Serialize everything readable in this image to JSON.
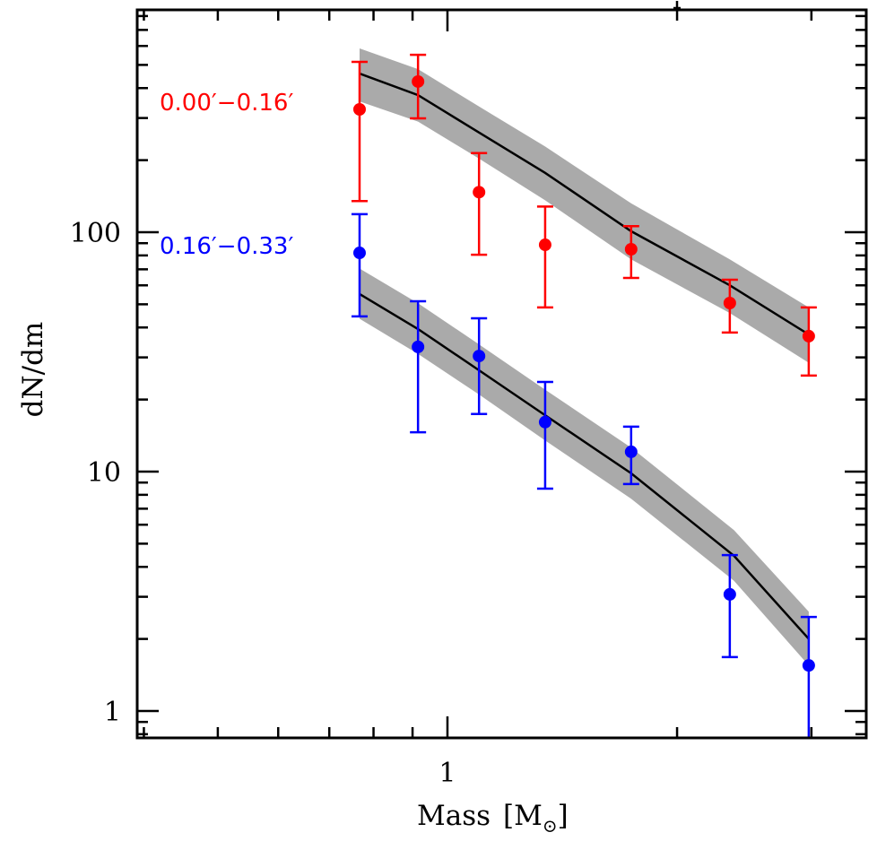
{
  "chart_data": {
    "type": "scatter",
    "title": "",
    "xlabel": "Mass [M☉]",
    "xlabel_main": "Mass",
    "xlabel_unit": "M",
    "xlabel_unit_sub": "⊙",
    "ylabel": "dN/dm",
    "xscale": "log",
    "yscale": "log",
    "xlim": [
      0.392,
      3.54
    ],
    "ylim": [
      0.772,
      849
    ],
    "x_major_ticks": [
      1
    ],
    "x_major_tick_labels": [
      "1"
    ],
    "x_minor_ticks": [
      0.4,
      0.5,
      0.6,
      0.7,
      0.8,
      0.9,
      2,
      3
    ],
    "y_major_ticks": [
      1,
      10,
      100
    ],
    "y_major_tick_labels": [
      "1",
      "10",
      "100"
    ],
    "y_minor_ticks": [
      0.8,
      0.9,
      2,
      3,
      4,
      5,
      6,
      7,
      8,
      9,
      20,
      30,
      40,
      50,
      60,
      70,
      80,
      90,
      200,
      300,
      400,
      500,
      600,
      700,
      800
    ],
    "grid": false,
    "legend": "inline-left",
    "series": [
      {
        "name": "0.00′−0.16′",
        "color": "#ff0000",
        "label_position": "top-left",
        "x": [
          0.767,
          0.915,
          1.1,
          1.343,
          1.741,
          2.345,
          2.976
        ],
        "y": [
          326,
          426,
          147,
          88.6,
          84.9,
          50.6,
          36.8
        ],
        "y_err_upper": [
          515,
          551,
          214,
          128,
          106,
          63.3,
          48.5
        ],
        "y_err_lower": [
          135,
          299,
          80.5,
          48.5,
          64.4,
          38.1,
          25.2
        ],
        "model": {
          "x": [
            0.767,
            0.915,
            1.1,
            1.343,
            1.741,
            2.345,
            2.976
          ],
          "y": [
            460,
            374,
            261,
            177,
            101,
            60,
            37.4
          ],
          "band_upper": [
            586,
            480,
            335,
            228,
            132,
            77,
            48.5
          ],
          "band_lower": [
            352,
            290,
            203,
            136,
            77,
            46,
            28.5
          ],
          "line_color": "#000000",
          "band_color": "#aaaaaa"
        }
      },
      {
        "name": "0.16′−0.33′",
        "color": "#0000ff",
        "label_position": "upper-middle-left",
        "x": [
          0.767,
          0.915,
          1.1,
          1.343,
          1.741,
          2.345,
          2.976
        ],
        "y": [
          82.0,
          33.2,
          30.4,
          16.1,
          12.1,
          3.07,
          1.55
        ],
        "y_err_upper": [
          119,
          51.5,
          43.7,
          23.7,
          15.4,
          4.48,
          2.47
        ],
        "y_err_lower": [
          44.5,
          14.6,
          17.4,
          8.49,
          8.87,
          1.68,
          0.5
        ],
        "model": {
          "x": [
            0.767,
            0.915,
            1.1,
            1.343,
            1.741,
            2.375,
            2.976
          ],
          "y": [
            55.2,
            39.4,
            26.5,
            17.2,
            9.84,
            4.45,
            2.0
          ],
          "band_upper": [
            70.5,
            50.5,
            34,
            22,
            12.6,
            5.7,
            2.6
          ],
          "band_lower": [
            43.5,
            31,
            21,
            13.5,
            7.7,
            3.5,
            1.55
          ],
          "line_color": "#000000",
          "band_color": "#aaaaaa"
        }
      }
    ]
  }
}
